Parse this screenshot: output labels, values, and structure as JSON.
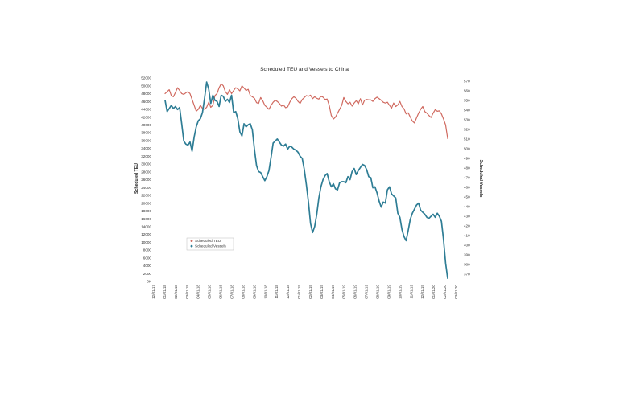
{
  "chart_data": {
    "type": "line",
    "title": "Scheduled TEU and Vessels to China",
    "ylabel_left": "Scheduled TEU",
    "ylabel_right": "Scheduled Vessels",
    "y_left_ticks": [
      "0K",
      "2000",
      "4000",
      "6000",
      "8000",
      "10000",
      "12000",
      "14000",
      "16000",
      "18000",
      "20000",
      "22000",
      "24000",
      "26000",
      "28000",
      "30000",
      "32000",
      "34000",
      "36000",
      "38000",
      "40000",
      "42000",
      "44000",
      "46000",
      "48000",
      "50000",
      "52000"
    ],
    "y_left_range": [
      0,
      52000
    ],
    "y_right_ticks": [
      "370",
      "380",
      "390",
      "400",
      "410",
      "420",
      "430",
      "440",
      "450",
      "460",
      "470",
      "480",
      "490",
      "500",
      "510",
      "520",
      "530",
      "540",
      "550",
      "560",
      "570"
    ],
    "y_right_range": [
      370,
      570
    ],
    "x_ticks": [
      "12/01/17",
      "01/01/18",
      "02/01/18",
      "03/01/18",
      "04/01/18",
      "05/01/18",
      "06/01/18",
      "07/01/18",
      "08/01/18",
      "09/01/18",
      "10/01/18",
      "11/01/18",
      "12/01/18",
      "01/01/19",
      "02/01/19",
      "03/01/19",
      "04/01/19",
      "05/01/19",
      "06/01/19",
      "07/01/19",
      "08/01/19",
      "09/01/19",
      "10/01/19",
      "11/01/19",
      "12/01/19",
      "01/01/20",
      "02/01/20",
      "03/01/20"
    ],
    "grid": false,
    "legend_position": "lower-left",
    "series": [
      {
        "name": "Scheduled TEU",
        "axis": "left",
        "color": "#d06a60",
        "values": [
          48000,
          48500,
          49000,
          47500,
          47200,
          48300,
          49500,
          48800,
          48000,
          47800,
          48200,
          48500,
          48000,
          46500,
          45000,
          43500,
          44000,
          45000,
          44200,
          44000,
          44500,
          45800,
          44500,
          45000,
          47500,
          48000,
          49500,
          50500,
          50000,
          48500,
          47800,
          49000,
          48000,
          48800,
          49500,
          49200,
          48700,
          50000,
          49400,
          48800,
          49100,
          47500,
          47200,
          46800,
          45700,
          45500,
          47000,
          46200,
          45000,
          44500,
          44000,
          45000,
          45800,
          46300,
          46000,
          45500,
          44800,
          45100,
          44400,
          44600,
          45800,
          46700,
          47200,
          46800,
          46000,
          45500,
          46500,
          47000,
          47500,
          47300,
          47600,
          46700,
          47200,
          46800,
          46600,
          47300,
          47100,
          46500,
          46600,
          45000,
          42400,
          41500,
          42000,
          43000,
          44000,
          45000,
          47000,
          46000,
          45400,
          45800,
          44800,
          45600,
          46200,
          45400,
          46700,
          45100,
          46300,
          46500,
          46400,
          46400,
          46000,
          46700,
          47100,
          46700,
          46300,
          45800,
          45600,
          45800,
          45000,
          44300,
          45600,
          44700,
          45100,
          46000,
          44700,
          44100,
          42800,
          43100,
          42000,
          41000,
          40500,
          41800,
          43000,
          44000,
          44700,
          43400,
          43000,
          42400,
          41900,
          43000,
          43900,
          43500,
          43600,
          42800,
          41500,
          40000,
          36500
        ]
      },
      {
        "name": "Scheduled Vessels",
        "axis": "right",
        "color": "#2e7d95",
        "values": [
          548,
          537,
          540,
          543,
          540,
          542,
          539,
          541,
          525,
          508,
          505,
          504,
          507,
          498,
          512,
          522,
          528,
          530,
          536,
          550,
          566,
          559,
          545,
          553,
          548,
          547,
          542,
          553,
          552,
          547,
          549,
          546,
          553,
          536,
          537,
          530,
          517,
          513,
          525,
          522,
          524,
          525,
          519,
          500,
          484,
          478,
          477,
          473,
          469,
          473,
          479,
          492,
          506,
          508,
          510,
          507,
          504,
          503,
          505,
          500,
          503,
          502,
          500,
          499,
          497,
          493,
          491,
          480,
          465,
          448,
          427,
          418,
          424,
          436,
          452,
          463,
          470,
          474,
          476,
          468,
          463,
          466,
          461,
          460,
          467,
          468,
          468,
          467,
          473,
          470,
          478,
          481,
          475,
          479,
          482,
          485,
          484,
          480,
          473,
          472,
          462,
          463,
          457,
          449,
          443,
          448,
          447,
          460,
          463,
          456,
          454,
          452,
          437,
          433,
          421,
          414,
          410,
          420,
          431,
          437,
          441,
          445,
          447,
          440,
          438,
          436,
          433,
          432,
          434,
          436,
          433,
          437,
          434,
          429,
          411,
          388,
          373
        ]
      }
    ]
  }
}
